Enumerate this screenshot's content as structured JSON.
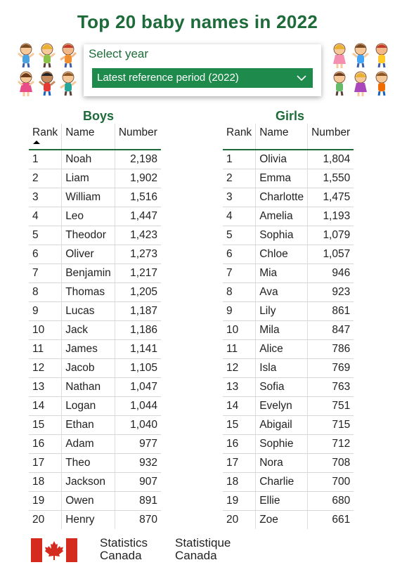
{
  "title": "Top 20 baby names in 2022",
  "year_selector": {
    "label": "Select year",
    "selected": "Latest reference period  (2022)",
    "chevron_icon": "chevron-down-icon"
  },
  "colors": {
    "accent": "#1e6b3a",
    "select_bg": "#1e8a4c",
    "flag_red": "#d52b1e"
  },
  "boys": {
    "title": "Boys",
    "columns": {
      "rank": "Rank",
      "name": "Name",
      "number": "Number"
    },
    "rows": [
      {
        "rank": "1",
        "name": "Noah",
        "number": "2,198"
      },
      {
        "rank": "2",
        "name": "Liam",
        "number": "1,902"
      },
      {
        "rank": "3",
        "name": "William",
        "number": "1,516"
      },
      {
        "rank": "4",
        "name": "Leo",
        "number": "1,447"
      },
      {
        "rank": "5",
        "name": "Theodor",
        "number": "1,423"
      },
      {
        "rank": "6",
        "name": "Oliver",
        "number": "1,273"
      },
      {
        "rank": "7",
        "name": "Benjamin",
        "number": "1,217"
      },
      {
        "rank": "8",
        "name": "Thomas",
        "number": "1,205"
      },
      {
        "rank": "9",
        "name": "Lucas",
        "number": "1,187"
      },
      {
        "rank": "10",
        "name": "Jack",
        "number": "1,186"
      },
      {
        "rank": "11",
        "name": "James",
        "number": "1,141"
      },
      {
        "rank": "12",
        "name": "Jacob",
        "number": "1,105"
      },
      {
        "rank": "13",
        "name": "Nathan",
        "number": "1,047"
      },
      {
        "rank": "14",
        "name": "Logan",
        "number": "1,044"
      },
      {
        "rank": "15",
        "name": "Ethan",
        "number": "1,040"
      },
      {
        "rank": "16",
        "name": "Adam",
        "number": "977"
      },
      {
        "rank": "17",
        "name": "Theo",
        "number": "932"
      },
      {
        "rank": "18",
        "name": "Jackson",
        "number": "907"
      },
      {
        "rank": "19",
        "name": "Owen",
        "number": "891"
      },
      {
        "rank": "20",
        "name": "Henry",
        "number": "870"
      }
    ]
  },
  "girls": {
    "title": "Girls",
    "columns": {
      "rank": "Rank",
      "name": "Name",
      "number": "Number"
    },
    "rows": [
      {
        "rank": "1",
        "name": "Olivia",
        "number": "1,804"
      },
      {
        "rank": "2",
        "name": "Emma",
        "number": "1,550"
      },
      {
        "rank": "3",
        "name": "Charlotte",
        "number": "1,475"
      },
      {
        "rank": "4",
        "name": "Amelia",
        "number": "1,193"
      },
      {
        "rank": "5",
        "name": "Sophia",
        "number": "1,079"
      },
      {
        "rank": "6",
        "name": "Chloe",
        "number": "1,057"
      },
      {
        "rank": "7",
        "name": "Mia",
        "number": "946"
      },
      {
        "rank": "8",
        "name": "Ava",
        "number": "923"
      },
      {
        "rank": "9",
        "name": "Lily",
        "number": "861"
      },
      {
        "rank": "10",
        "name": "Mila",
        "number": "847"
      },
      {
        "rank": "11",
        "name": "Alice",
        "number": "786"
      },
      {
        "rank": "12",
        "name": "Isla",
        "number": "769"
      },
      {
        "rank": "13",
        "name": "Sofia",
        "number": "763"
      },
      {
        "rank": "14",
        "name": "Evelyn",
        "number": "751"
      },
      {
        "rank": "15",
        "name": "Abigail",
        "number": "715"
      },
      {
        "rank": "16",
        "name": "Sophie",
        "number": "712"
      },
      {
        "rank": "17",
        "name": "Nora",
        "number": "708"
      },
      {
        "rank": "18",
        "name": "Charlie",
        "number": "700"
      },
      {
        "rank": "19",
        "name": "Ellie",
        "number": "680"
      },
      {
        "rank": "20",
        "name": "Zoe",
        "number": "661"
      }
    ]
  },
  "footer": {
    "flag_icon": "canada-flag-icon",
    "agency_en_1": "Statistics",
    "agency_en_2": "Canada",
    "agency_fr_1": "Statistique",
    "agency_fr_2": "Canada"
  }
}
